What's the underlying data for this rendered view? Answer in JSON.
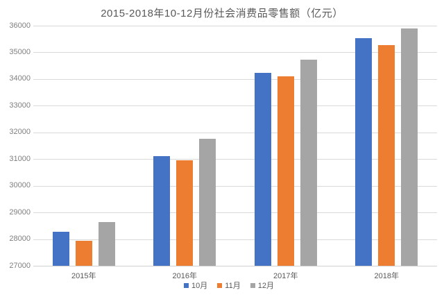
{
  "chart_data": {
    "type": "bar",
    "title": "2015-2018年10-12月份社会消费品零售额（亿元）",
    "xlabel": "",
    "ylabel": "",
    "categories": [
      "2015年",
      "2016年",
      "2017年",
      "2018年"
    ],
    "series": [
      {
        "name": "10月",
        "color": "#4472c4",
        "values": [
          28279,
          31119,
          34241,
          35534
        ]
      },
      {
        "name": "11月",
        "color": "#ed7d31",
        "values": [
          27938,
          30959,
          34108,
          35260
        ]
      },
      {
        "name": "12月",
        "color": "#a5a5a5",
        "values": [
          28635,
          31757,
          34734,
          35893
        ]
      }
    ],
    "ylim": [
      27000,
      36000
    ],
    "ytick_step": 1000,
    "grid": true,
    "legend_position": "bottom"
  },
  "colors": {
    "background": "#ffffff",
    "gridline": "#d9d9d9",
    "title_text": "#595959",
    "tick_text": "#7f7f7f",
    "axis_text": "#595959"
  }
}
